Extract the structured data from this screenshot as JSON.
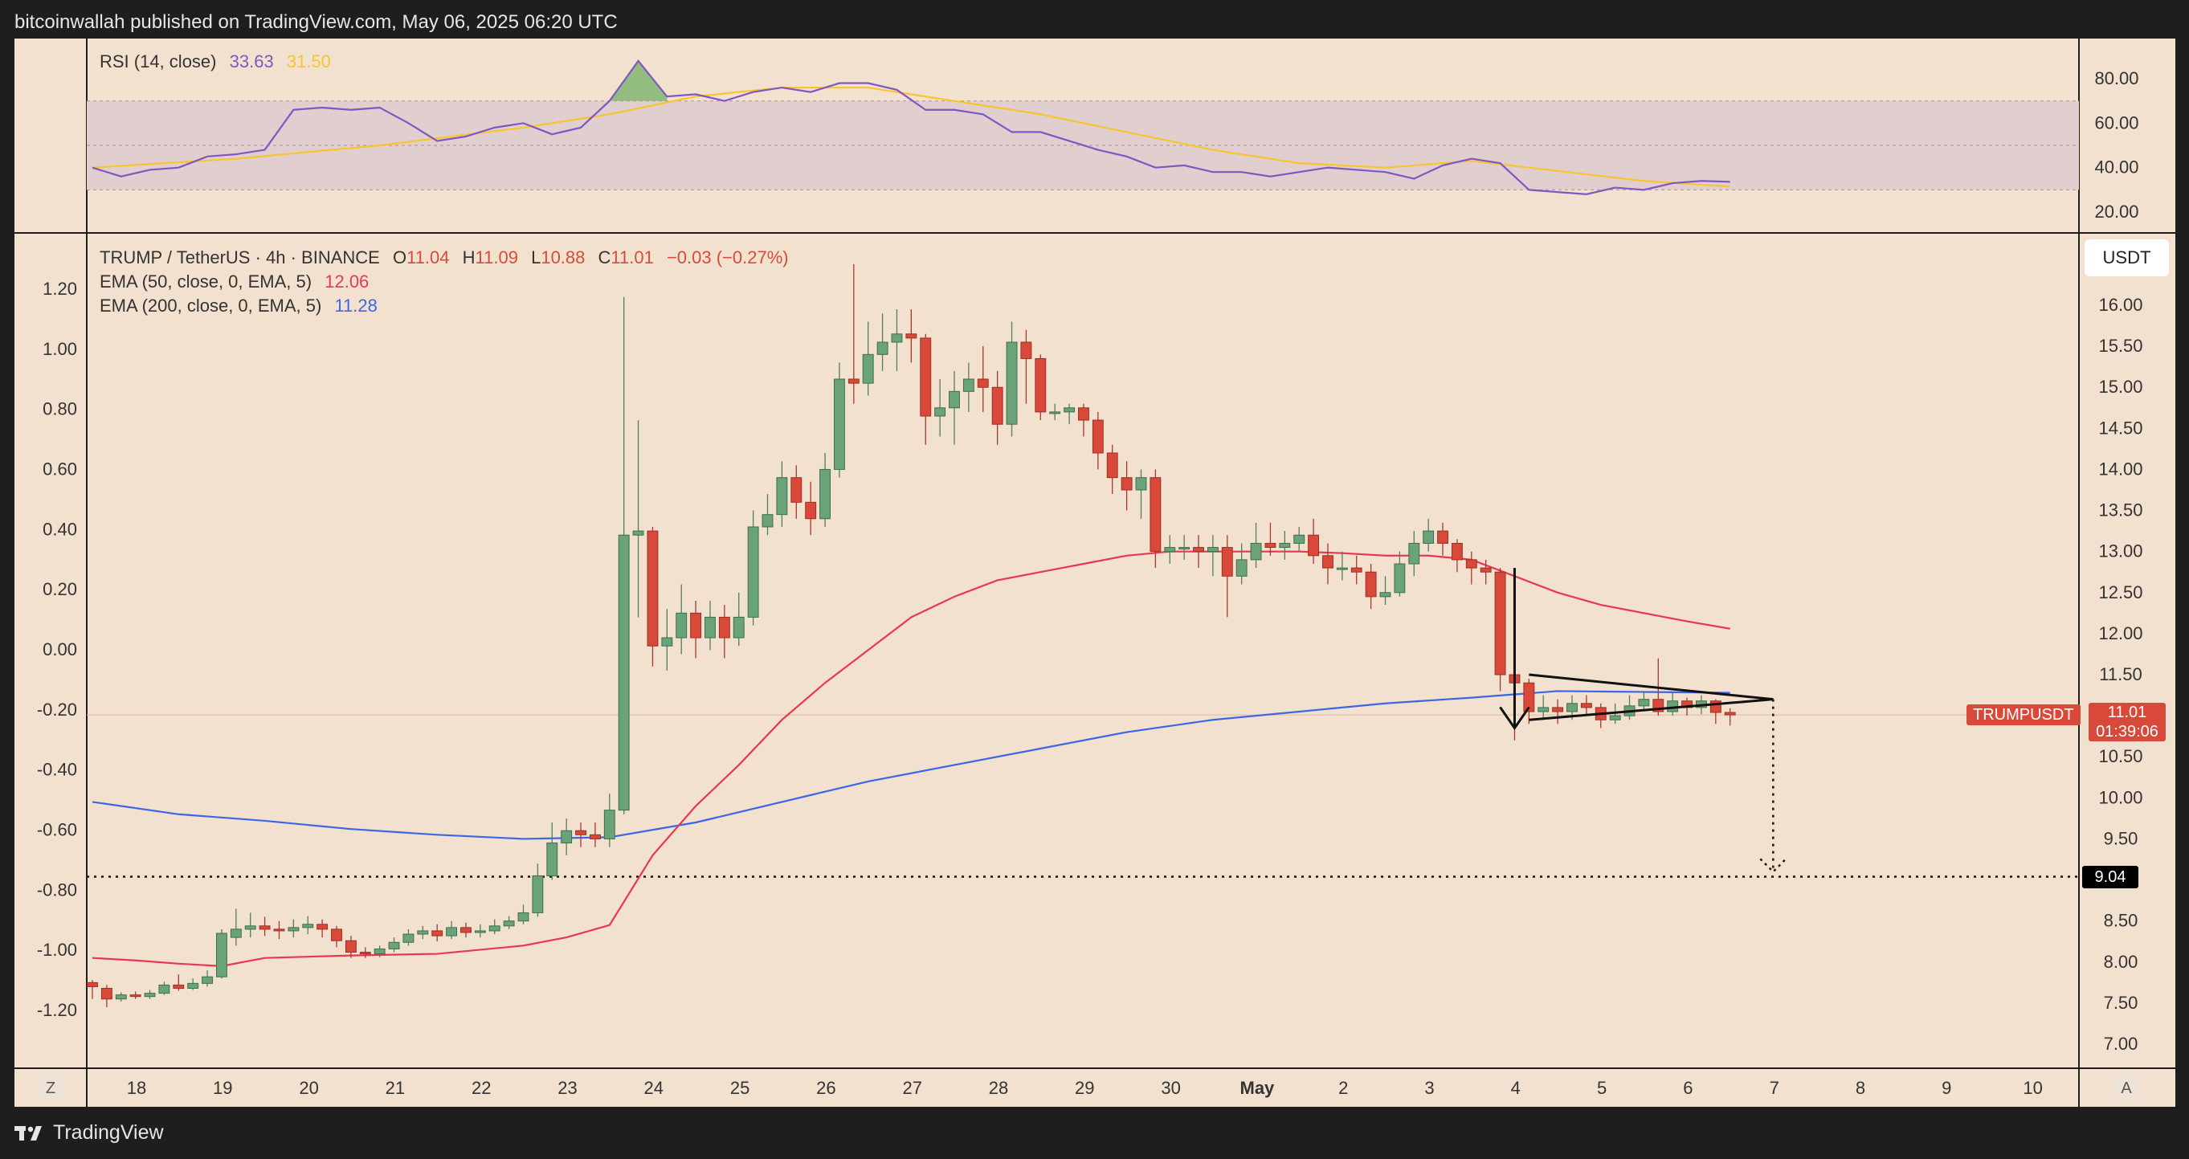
{
  "header": {
    "published_text": "bitcoinwallah published on TradingView.com, May 06, 2025 06:20 UTC"
  },
  "footer": {
    "brand": "TradingView",
    "logo_icon": "tradingview-logo-icon"
  },
  "controls": {
    "timezone_button": "Z",
    "auto_scale_button": "A",
    "currency": "USDT"
  },
  "rsi_panel": {
    "title": "RSI (14, close)",
    "rsi_value": "33.63",
    "ma_value": "31.50",
    "axis_ticks": [
      "80.00",
      "60.00",
      "40.00",
      "20.00"
    ],
    "rsi_color": "#7e57c2",
    "ma_color": "#f7c531",
    "band_color": "#e1cfd0"
  },
  "price_panel": {
    "symbol_line": "TRUMP / TetherUS · 4h · BINANCE",
    "ohlc": [
      {
        "k": "O",
        "v": "11.04"
      },
      {
        "k": "H",
        "v": "11.09"
      },
      {
        "k": "L",
        "v": "10.88"
      },
      {
        "k": "C",
        "v": "11.01"
      },
      {
        "k": "",
        "v": "−0.03 (−0.27%)"
      }
    ],
    "ema50_label": "EMA (50, close, 0, EMA, 5)",
    "ema50_value": "12.06",
    "ema200_label": "EMA (200, close, 0, EMA, 5)",
    "ema200_value": "11.28",
    "ema50_color": "#e53950",
    "ema200_color": "#3b66e6",
    "up_color": "#6aa27a",
    "down_color": "#d9493a",
    "ticker_label": "TRUMPUSDT",
    "last_price": "11.01",
    "countdown": "01:39:06",
    "target_price": "9.04",
    "right_axis_ticks": [
      "16.00",
      "15.50",
      "15.00",
      "14.50",
      "14.00",
      "13.50",
      "13.00",
      "12.50",
      "12.00",
      "11.50",
      "11.00",
      "10.50",
      "10.00",
      "9.50",
      "9.00",
      "8.50",
      "8.00",
      "7.50",
      "7.00"
    ],
    "left_axis_ticks": [
      "1.20",
      "1.00",
      "0.80",
      "0.60",
      "0.40",
      "0.20",
      "0.00",
      "-0.20",
      "-0.40",
      "-0.60",
      "-0.80",
      "-1.00",
      "-1.20"
    ],
    "date_ticks": [
      "18",
      "19",
      "20",
      "21",
      "22",
      "23",
      "24",
      "25",
      "26",
      "27",
      "28",
      "29",
      "30",
      "May",
      "2",
      "3",
      "4",
      "5",
      "6",
      "7",
      "8",
      "9",
      "10"
    ]
  },
  "chart_data": {
    "type": "candlestick",
    "symbol": "TRUMP / TetherUS",
    "timeframe": "4h",
    "ylim": [
      6.8,
      16.4
    ],
    "x_axis": "days (April 18 – May 10, 2025), 6 candles per day",
    "candles": [
      [
        7.75,
        7.7,
        7.78,
        7.55
      ],
      [
        7.68,
        7.55,
        7.72,
        7.45
      ],
      [
        7.55,
        7.6,
        7.63,
        7.52
      ],
      [
        7.6,
        7.58,
        7.64,
        7.55
      ],
      [
        7.58,
        7.62,
        7.66,
        7.55
      ],
      [
        7.62,
        7.72,
        7.76,
        7.6
      ],
      [
        7.72,
        7.68,
        7.85,
        7.65
      ],
      [
        7.68,
        7.74,
        7.8,
        7.66
      ],
      [
        7.74,
        7.82,
        7.9,
        7.7
      ],
      [
        7.82,
        8.35,
        8.4,
        7.8
      ],
      [
        8.3,
        8.4,
        8.65,
        8.2
      ],
      [
        8.4,
        8.44,
        8.6,
        8.3
      ],
      [
        8.44,
        8.4,
        8.55,
        8.32
      ],
      [
        8.4,
        8.38,
        8.5,
        8.28
      ],
      [
        8.38,
        8.42,
        8.52,
        8.3
      ],
      [
        8.42,
        8.46,
        8.56,
        8.34
      ],
      [
        8.46,
        8.4,
        8.52,
        8.3
      ],
      [
        8.4,
        8.26,
        8.44,
        8.18
      ],
      [
        8.26,
        8.12,
        8.32,
        8.05
      ],
      [
        8.12,
        8.1,
        8.18,
        8.05
      ],
      [
        8.1,
        8.16,
        8.2,
        8.06
      ],
      [
        8.16,
        8.24,
        8.3,
        8.12
      ],
      [
        8.24,
        8.34,
        8.4,
        8.2
      ],
      [
        8.34,
        8.38,
        8.44,
        8.28
      ],
      [
        8.38,
        8.32,
        8.46,
        8.25
      ],
      [
        8.32,
        8.42,
        8.5,
        8.28
      ],
      [
        8.42,
        8.36,
        8.48,
        8.3
      ],
      [
        8.36,
        8.38,
        8.46,
        8.3
      ],
      [
        8.38,
        8.44,
        8.52,
        8.34
      ],
      [
        8.44,
        8.5,
        8.56,
        8.4
      ],
      [
        8.5,
        8.6,
        8.7,
        8.46
      ],
      [
        8.6,
        9.05,
        9.2,
        8.55
      ],
      [
        9.05,
        9.45,
        9.7,
        9.0
      ],
      [
        9.45,
        9.6,
        9.75,
        9.3
      ],
      [
        9.6,
        9.55,
        9.7,
        9.4
      ],
      [
        9.55,
        9.5,
        9.7,
        9.4
      ],
      [
        9.5,
        9.85,
        10.05,
        9.4
      ],
      [
        9.85,
        13.2,
        16.1,
        9.8
      ],
      [
        13.2,
        13.25,
        14.6,
        12.2
      ],
      [
        13.25,
        11.85,
        13.3,
        11.6
      ],
      [
        11.85,
        11.95,
        12.3,
        11.55
      ],
      [
        11.95,
        12.25,
        12.6,
        11.75
      ],
      [
        12.25,
        11.95,
        12.4,
        11.7
      ],
      [
        11.95,
        12.2,
        12.4,
        11.8
      ],
      [
        12.2,
        11.95,
        12.35,
        11.7
      ],
      [
        11.95,
        12.2,
        12.5,
        11.85
      ],
      [
        12.2,
        13.3,
        13.5,
        12.1
      ],
      [
        13.3,
        13.45,
        13.7,
        13.2
      ],
      [
        13.45,
        13.9,
        14.1,
        13.3
      ],
      [
        13.9,
        13.6,
        14.05,
        13.4
      ],
      [
        13.6,
        13.4,
        13.85,
        13.2
      ],
      [
        13.4,
        14.0,
        14.2,
        13.3
      ],
      [
        14.0,
        15.1,
        15.3,
        13.9
      ],
      [
        15.1,
        15.05,
        16.5,
        14.8
      ],
      [
        15.05,
        15.4,
        15.8,
        14.9
      ],
      [
        15.4,
        15.55,
        15.9,
        15.2
      ],
      [
        15.55,
        15.65,
        15.95,
        15.2
      ],
      [
        15.65,
        15.6,
        15.95,
        15.3
      ],
      [
        15.6,
        14.65,
        15.65,
        14.3
      ],
      [
        14.65,
        14.75,
        15.1,
        14.4
      ],
      [
        14.75,
        14.95,
        15.2,
        14.3
      ],
      [
        14.95,
        15.1,
        15.3,
        14.7
      ],
      [
        15.1,
        15.0,
        15.5,
        14.7
      ],
      [
        15.0,
        14.55,
        15.2,
        14.3
      ],
      [
        14.55,
        15.55,
        15.8,
        14.4
      ],
      [
        15.55,
        15.35,
        15.7,
        14.8
      ],
      [
        15.35,
        14.7,
        15.4,
        14.6
      ],
      [
        14.7,
        14.7,
        14.8,
        14.6
      ],
      [
        14.7,
        14.75,
        14.8,
        14.55
      ],
      [
        14.75,
        14.6,
        14.8,
        14.4
      ],
      [
        14.6,
        14.2,
        14.7,
        14.0
      ],
      [
        14.2,
        13.9,
        14.3,
        13.7
      ],
      [
        13.9,
        13.75,
        14.1,
        13.5
      ],
      [
        13.75,
        13.9,
        14.0,
        13.4
      ],
      [
        13.9,
        13.0,
        14.0,
        12.8
      ],
      [
        13.0,
        13.05,
        13.2,
        12.85
      ],
      [
        13.05,
        13.05,
        13.2,
        12.9
      ],
      [
        13.05,
        13.0,
        13.2,
        12.8
      ],
      [
        13.0,
        13.05,
        13.2,
        12.7
      ],
      [
        13.05,
        12.7,
        13.2,
        12.2
      ],
      [
        12.7,
        12.9,
        13.1,
        12.6
      ],
      [
        12.9,
        13.1,
        13.35,
        12.8
      ],
      [
        13.1,
        13.05,
        13.35,
        12.95
      ],
      [
        13.05,
        13.1,
        13.25,
        12.9
      ],
      [
        13.1,
        13.2,
        13.3,
        13.0
      ],
      [
        13.2,
        12.95,
        13.4,
        12.85
      ],
      [
        12.95,
        12.8,
        13.1,
        12.6
      ],
      [
        12.8,
        12.8,
        13.0,
        12.65
      ],
      [
        12.8,
        12.75,
        12.95,
        12.6
      ],
      [
        12.75,
        12.45,
        12.85,
        12.3
      ],
      [
        12.45,
        12.5,
        12.7,
        12.35
      ],
      [
        12.5,
        12.85,
        13.0,
        12.45
      ],
      [
        12.85,
        13.1,
        13.25,
        12.7
      ],
      [
        13.1,
        13.25,
        13.4,
        13.0
      ],
      [
        13.25,
        13.1,
        13.35,
        12.95
      ],
      [
        13.1,
        12.9,
        13.15,
        12.75
      ],
      [
        12.9,
        12.8,
        13.0,
        12.6
      ],
      [
        12.8,
        12.75,
        12.9,
        12.6
      ],
      [
        12.75,
        11.5,
        12.8,
        11.3
      ],
      [
        11.5,
        11.4,
        11.6,
        10.7
      ],
      [
        11.4,
        11.05,
        11.45,
        10.9
      ],
      [
        11.05,
        11.1,
        11.25,
        10.95
      ],
      [
        11.1,
        11.05,
        11.2,
        10.9
      ],
      [
        11.05,
        11.15,
        11.25,
        10.95
      ],
      [
        11.15,
        11.1,
        11.25,
        11.0
      ],
      [
        11.1,
        10.95,
        11.15,
        10.85
      ],
      [
        10.95,
        11.0,
        11.15,
        10.9
      ],
      [
        11.0,
        11.12,
        11.25,
        10.95
      ],
      [
        11.12,
        11.2,
        11.3,
        11.05
      ],
      [
        11.2,
        11.05,
        11.7,
        11.0
      ],
      [
        11.05,
        11.18,
        11.28,
        11.0
      ],
      [
        11.18,
        11.1,
        11.22,
        11.0
      ],
      [
        11.1,
        11.18,
        11.25,
        11.02
      ],
      [
        11.18,
        11.04,
        11.2,
        10.9
      ],
      [
        11.04,
        11.01,
        11.09,
        10.88
      ]
    ],
    "ema50": [
      [
        0,
        8.05
      ],
      [
        3,
        8.02
      ],
      [
        6,
        7.98
      ],
      [
        9,
        7.95
      ],
      [
        12,
        8.05
      ],
      [
        18,
        8.08
      ],
      [
        24,
        8.1
      ],
      [
        30,
        8.2
      ],
      [
        33,
        8.3
      ],
      [
        36,
        8.45
      ],
      [
        39,
        9.3
      ],
      [
        42,
        9.9
      ],
      [
        45,
        10.4
      ],
      [
        48,
        10.95
      ],
      [
        51,
        11.4
      ],
      [
        54,
        11.8
      ],
      [
        57,
        12.2
      ],
      [
        60,
        12.45
      ],
      [
        63,
        12.65
      ],
      [
        66,
        12.75
      ],
      [
        69,
        12.85
      ],
      [
        72,
        12.95
      ],
      [
        75,
        13.0
      ],
      [
        78,
        13.0
      ],
      [
        81,
        13.0
      ],
      [
        84,
        13.0
      ],
      [
        87,
        12.98
      ],
      [
        90,
        12.95
      ],
      [
        93,
        12.95
      ],
      [
        96,
        12.9
      ],
      [
        99,
        12.7
      ],
      [
        102,
        12.5
      ],
      [
        105,
        12.35
      ],
      [
        108,
        12.25
      ],
      [
        111,
        12.15
      ],
      [
        114,
        12.06
      ]
    ],
    "ema200": [
      [
        0,
        9.95
      ],
      [
        6,
        9.8
      ],
      [
        12,
        9.72
      ],
      [
        18,
        9.62
      ],
      [
        24,
        9.55
      ],
      [
        30,
        9.5
      ],
      [
        36,
        9.52
      ],
      [
        42,
        9.7
      ],
      [
        48,
        9.95
      ],
      [
        54,
        10.2
      ],
      [
        60,
        10.4
      ],
      [
        66,
        10.6
      ],
      [
        72,
        10.8
      ],
      [
        78,
        10.95
      ],
      [
        84,
        11.05
      ],
      [
        90,
        11.15
      ],
      [
        96,
        11.22
      ],
      [
        99,
        11.26
      ],
      [
        102,
        11.3
      ],
      [
        108,
        11.29
      ],
      [
        114,
        11.28
      ]
    ],
    "rsi": [
      [
        0,
        40
      ],
      [
        2,
        36
      ],
      [
        4,
        39
      ],
      [
        6,
        40
      ],
      [
        8,
        45
      ],
      [
        10,
        46
      ],
      [
        12,
        48
      ],
      [
        14,
        66
      ],
      [
        16,
        67
      ],
      [
        18,
        66
      ],
      [
        20,
        67
      ],
      [
        22,
        60
      ],
      [
        24,
        52
      ],
      [
        26,
        54
      ],
      [
        28,
        58
      ],
      [
        30,
        60
      ],
      [
        32,
        55
      ],
      [
        34,
        58
      ],
      [
        36,
        70
      ],
      [
        38,
        88
      ],
      [
        40,
        72
      ],
      [
        42,
        73
      ],
      [
        44,
        70
      ],
      [
        46,
        74
      ],
      [
        48,
        76
      ],
      [
        50,
        74
      ],
      [
        52,
        78
      ],
      [
        54,
        78
      ],
      [
        56,
        75
      ],
      [
        58,
        66
      ],
      [
        60,
        66
      ],
      [
        62,
        64
      ],
      [
        64,
        56
      ],
      [
        66,
        56
      ],
      [
        68,
        52
      ],
      [
        70,
        48
      ],
      [
        72,
        45
      ],
      [
        74,
        40
      ],
      [
        76,
        41
      ],
      [
        78,
        38
      ],
      [
        80,
        38
      ],
      [
        82,
        36
      ],
      [
        84,
        38
      ],
      [
        86,
        40
      ],
      [
        88,
        39
      ],
      [
        90,
        38
      ],
      [
        92,
        35
      ],
      [
        94,
        41
      ],
      [
        96,
        44
      ],
      [
        98,
        42
      ],
      [
        100,
        30
      ],
      [
        102,
        29
      ],
      [
        104,
        28
      ],
      [
        106,
        31
      ],
      [
        108,
        30
      ],
      [
        110,
        33
      ],
      [
        112,
        34
      ],
      [
        114,
        33.6
      ]
    ],
    "rsi_ma": [
      [
        0,
        40
      ],
      [
        10,
        44
      ],
      [
        20,
        50
      ],
      [
        30,
        58
      ],
      [
        36,
        64
      ],
      [
        42,
        72
      ],
      [
        48,
        76
      ],
      [
        54,
        76
      ],
      [
        60,
        70
      ],
      [
        66,
        64
      ],
      [
        72,
        56
      ],
      [
        78,
        48
      ],
      [
        84,
        42
      ],
      [
        90,
        40
      ],
      [
        96,
        43
      ],
      [
        100,
        40
      ],
      [
        104,
        37
      ],
      [
        108,
        34
      ],
      [
        114,
        31.5
      ]
    ],
    "pattern": {
      "name": "symmetrical triangle",
      "upper_line": [
        [
          100,
          11.5
        ],
        [
          117,
          11.2
        ]
      ],
      "lower_line": [
        [
          100,
          10.95
        ],
        [
          117,
          11.2
        ]
      ],
      "pole_arrow": [
        [
          99,
          12.8
        ],
        [
          99,
          10.85
        ]
      ],
      "projection_arrow": [
        [
          117,
          11.2
        ],
        [
          117,
          9.1
        ]
      ],
      "target": 9.04
    }
  }
}
